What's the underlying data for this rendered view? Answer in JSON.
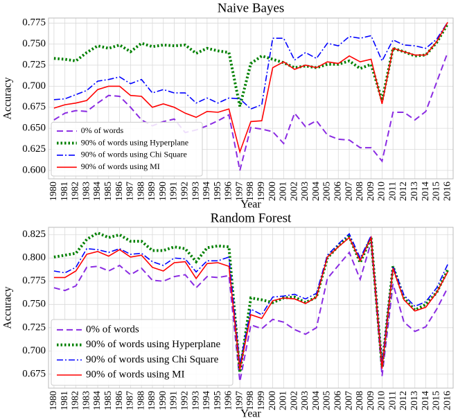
{
  "chart_data": [
    {
      "type": "line",
      "title": "Naive Bayes",
      "x_label": "Year",
      "y_label": "Accuracy",
      "categories": [
        1980,
        1981,
        1982,
        1983,
        1984,
        1985,
        1986,
        1987,
        1988,
        1989,
        1990,
        1991,
        1992,
        1993,
        1994,
        1995,
        1996,
        1997,
        1998,
        1999,
        2000,
        2001,
        2002,
        2003,
        2004,
        2005,
        2006,
        2007,
        2008,
        2009,
        2010,
        2011,
        2012,
        2013,
        2014,
        2015,
        2016
      ],
      "ylim": [
        0.59,
        0.781
      ],
      "yticks": [
        {
          "value": 0.6,
          "label": "0.600"
        },
        {
          "value": 0.625,
          "label": "0.625"
        },
        {
          "value": 0.65,
          "label": "0.650"
        },
        {
          "value": 0.675,
          "label": "0.675"
        },
        {
          "value": 0.7,
          "label": "0.700"
        },
        {
          "value": 0.725,
          "label": "0.725"
        },
        {
          "value": 0.75,
          "label": "0.750"
        },
        {
          "value": 0.775,
          "label": "0.775"
        }
      ],
      "grid": true,
      "legend": "lower left",
      "series": [
        {
          "name": "0% of words",
          "color": "#8a2be2",
          "linestyle": "dashed",
          "values": [
            0.66,
            0.668,
            0.671,
            0.67,
            0.68,
            0.689,
            0.688,
            0.675,
            0.66,
            0.653,
            0.658,
            0.661,
            0.645,
            0.648,
            0.653,
            0.659,
            0.666,
            0.6,
            0.651,
            0.649,
            0.646,
            0.632,
            0.668,
            0.652,
            0.659,
            0.642,
            0.637,
            0.636,
            0.627,
            0.627,
            0.611,
            0.669,
            0.669,
            0.66,
            0.67,
            0.705,
            0.74
          ]
        },
        {
          "name": "90% of words using Hyperplane",
          "color": "#008000",
          "linestyle": "dotted",
          "values": [
            0.733,
            0.732,
            0.73,
            0.74,
            0.748,
            0.745,
            0.749,
            0.741,
            0.751,
            0.747,
            0.749,
            0.748,
            0.749,
            0.739,
            0.745,
            0.742,
            0.74,
            0.676,
            0.727,
            0.736,
            0.732,
            0.728,
            0.722,
            0.724,
            0.722,
            0.726,
            0.726,
            0.73,
            0.721,
            0.726,
            0.683,
            0.745,
            0.741,
            0.736,
            0.737,
            0.752,
            0.774
          ]
        },
        {
          "name": "90% of words using Chi Square",
          "color": "#0000ff",
          "linestyle": "dashdot",
          "values": [
            0.684,
            0.685,
            0.69,
            0.695,
            0.706,
            0.708,
            0.711,
            0.703,
            0.708,
            0.692,
            0.696,
            0.692,
            0.692,
            0.68,
            0.686,
            0.68,
            0.686,
            0.685,
            0.673,
            0.678,
            0.757,
            0.757,
            0.731,
            0.74,
            0.733,
            0.751,
            0.748,
            0.759,
            0.757,
            0.76,
            0.73,
            0.755,
            0.749,
            0.748,
            0.745,
            0.756,
            0.776
          ]
        },
        {
          "name": "90% of words using MI",
          "color": "#ff0000",
          "linestyle": "solid",
          "values": [
            0.674,
            0.678,
            0.68,
            0.683,
            0.696,
            0.7,
            0.7,
            0.689,
            0.688,
            0.675,
            0.679,
            0.675,
            0.668,
            0.663,
            0.67,
            0.669,
            0.673,
            0.622,
            0.658,
            0.659,
            0.722,
            0.729,
            0.72,
            0.725,
            0.722,
            0.729,
            0.727,
            0.736,
            0.729,
            0.732,
            0.679,
            0.745,
            0.741,
            0.737,
            0.737,
            0.753,
            0.776
          ]
        }
      ]
    },
    {
      "type": "line",
      "title": "Random Forest",
      "x_label": "Year",
      "y_label": "Accuracy",
      "categories": [
        1980,
        1981,
        1982,
        1983,
        1984,
        1985,
        1986,
        1987,
        1988,
        1989,
        1990,
        1991,
        1992,
        1993,
        1994,
        1995,
        1996,
        1997,
        1998,
        1999,
        2000,
        2001,
        2002,
        2003,
        2004,
        2005,
        2006,
        2007,
        2008,
        2009,
        2010,
        2011,
        2012,
        2013,
        2014,
        2015,
        2016
      ],
      "ylim": [
        0.66,
        0.833
      ],
      "yticks": [
        {
          "value": 0.675,
          "label": "0.675"
        },
        {
          "value": 0.7,
          "label": "0.700"
        },
        {
          "value": 0.725,
          "label": "0.725"
        },
        {
          "value": 0.75,
          "label": "0.750"
        },
        {
          "value": 0.775,
          "label": "0.775"
        },
        {
          "value": 0.8,
          "label": "0.800"
        },
        {
          "value": 0.825,
          "label": "0.825"
        }
      ],
      "grid": true,
      "legend": "lower left",
      "series": [
        {
          "name": "0% of words",
          "color": "#8a2be2",
          "linestyle": "dashed",
          "values": [
            0.768,
            0.765,
            0.77,
            0.79,
            0.791,
            0.786,
            0.792,
            0.782,
            0.789,
            0.776,
            0.775,
            0.78,
            0.782,
            0.768,
            0.78,
            0.779,
            0.781,
            0.667,
            0.728,
            0.724,
            0.734,
            0.731,
            0.723,
            0.718,
            0.725,
            0.778,
            0.792,
            0.806,
            0.777,
            0.817,
            0.673,
            0.772,
            0.731,
            0.721,
            0.726,
            0.745,
            0.768
          ]
        },
        {
          "name": "90% of words using Hyperplane",
          "color": "#008000",
          "linestyle": "dotted",
          "values": [
            0.801,
            0.803,
            0.805,
            0.82,
            0.827,
            0.822,
            0.825,
            0.818,
            0.818,
            0.808,
            0.808,
            0.812,
            0.81,
            0.796,
            0.811,
            0.813,
            0.812,
            0.677,
            0.757,
            0.755,
            0.752,
            0.757,
            0.758,
            0.752,
            0.758,
            0.8,
            0.813,
            0.823,
            0.795,
            0.822,
            0.683,
            0.791,
            0.757,
            0.744,
            0.75,
            0.763,
            0.787
          ]
        },
        {
          "name": "90% of words using Chi Square",
          "color": "#0000ff",
          "linestyle": "dashdot",
          "values": [
            0.786,
            0.784,
            0.79,
            0.81,
            0.809,
            0.806,
            0.81,
            0.804,
            0.805,
            0.796,
            0.792,
            0.8,
            0.799,
            0.785,
            0.797,
            0.797,
            0.801,
            0.685,
            0.745,
            0.739,
            0.758,
            0.759,
            0.761,
            0.756,
            0.762,
            0.803,
            0.815,
            0.826,
            0.8,
            0.824,
            0.686,
            0.791,
            0.76,
            0.748,
            0.753,
            0.768,
            0.793
          ]
        },
        {
          "name": "90% of words using MI",
          "color": "#ff0000",
          "linestyle": "solid",
          "values": [
            0.779,
            0.779,
            0.786,
            0.804,
            0.807,
            0.802,
            0.809,
            0.801,
            0.803,
            0.79,
            0.786,
            0.795,
            0.796,
            0.778,
            0.794,
            0.795,
            0.791,
            0.68,
            0.739,
            0.735,
            0.754,
            0.757,
            0.756,
            0.751,
            0.758,
            0.801,
            0.812,
            0.822,
            0.797,
            0.822,
            0.681,
            0.789,
            0.755,
            0.743,
            0.747,
            0.763,
            0.785
          ]
        }
      ]
    }
  ]
}
